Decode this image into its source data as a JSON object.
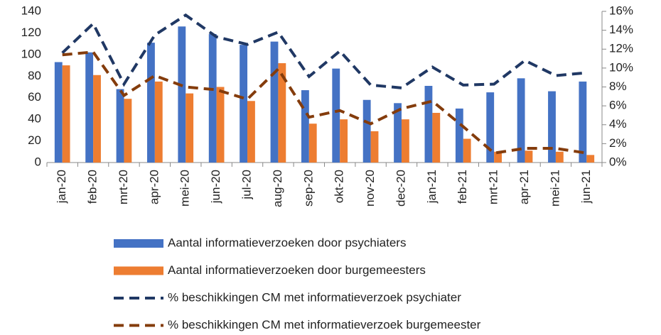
{
  "chart_data": {
    "type": "bar_line",
    "categories": [
      "jan-20",
      "feb-20",
      "mrt-20",
      "apr-20",
      "mei-20",
      "jun-20",
      "jul-20",
      "aug-20",
      "sep-20",
      "okt-20",
      "nov-20",
      "dec-20",
      "jan-21",
      "feb-21",
      "mrt-21",
      "apr-21",
      "mei-21",
      "jun-21"
    ],
    "series": [
      {
        "name": "Aantal informatieverzoeken door psychiaters",
        "type": "bar",
        "color": "#4472c4",
        "values": [
          93,
          102,
          68,
          111,
          126,
          119,
          109,
          112,
          67,
          87,
          58,
          55,
          71,
          50,
          65,
          78,
          66,
          75
        ]
      },
      {
        "name": "Aantal informatieverzoeken door burgemeesters",
        "type": "bar",
        "color": "#ed7d31",
        "values": [
          90,
          81,
          59,
          75,
          64,
          70,
          57,
          92,
          36,
          40,
          29,
          40,
          46,
          22,
          10,
          11,
          10,
          7
        ]
      },
      {
        "name": "% beschikkingen CM met informatieverzoek psychiater",
        "type": "line",
        "axis": "y2",
        "color": "#203864",
        "values": [
          11.6,
          14.7,
          8.3,
          13.5,
          15.6,
          13.3,
          12.5,
          13.8,
          9.1,
          11.8,
          8.2,
          7.9,
          10.1,
          8.2,
          8.3,
          10.8,
          9.2,
          9.5
        ]
      },
      {
        "name": "% beschikkingen CM met informatieverzoek burgemeester",
        "type": "line",
        "axis": "y2",
        "color": "#843c0c",
        "values": [
          11.4,
          11.7,
          7.1,
          9.2,
          8.0,
          7.7,
          6.7,
          9.9,
          4.8,
          5.5,
          4.1,
          5.7,
          6.5,
          3.8,
          1.0,
          1.5,
          1.5,
          1.0
        ]
      }
    ],
    "ylim": [
      0,
      140
    ],
    "yticks": [
      0,
      20,
      40,
      60,
      80,
      100,
      120,
      140
    ],
    "y2lim": [
      0,
      16
    ],
    "y2ticks": [
      {
        "value": 0,
        "label": "0%"
      },
      {
        "value": 2,
        "label": "2%"
      },
      {
        "value": 4,
        "label": "4%"
      },
      {
        "value": 6,
        "label": "6%"
      },
      {
        "value": 8,
        "label": "8%"
      },
      {
        "value": 10,
        "label": "10%"
      },
      {
        "value": 12,
        "label": "12%"
      },
      {
        "value": 14,
        "label": "14%"
      },
      {
        "value": 16,
        "label": "16%"
      }
    ],
    "legend": "bottom"
  }
}
